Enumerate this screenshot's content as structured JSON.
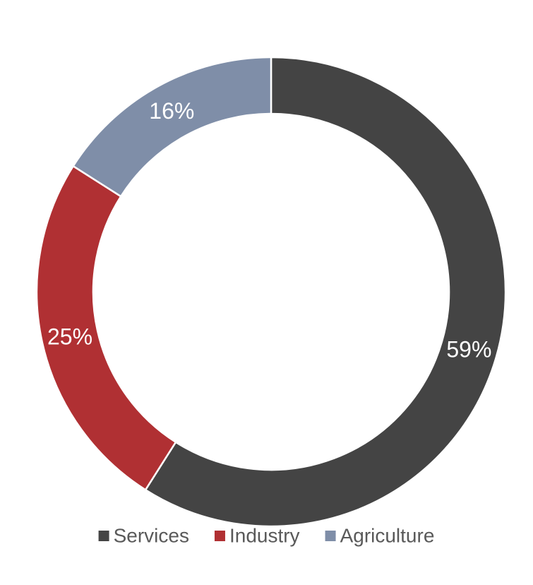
{
  "chart_data": {
    "type": "doughnut",
    "categories": [
      "Services",
      "Industry",
      "Agriculture"
    ],
    "values": [
      59,
      25,
      16
    ],
    "value_labels": [
      "59%",
      "25%",
      "16%"
    ],
    "colors": [
      "#444444",
      "#b03033",
      "#7f8ea8"
    ],
    "legend": "bottom"
  }
}
